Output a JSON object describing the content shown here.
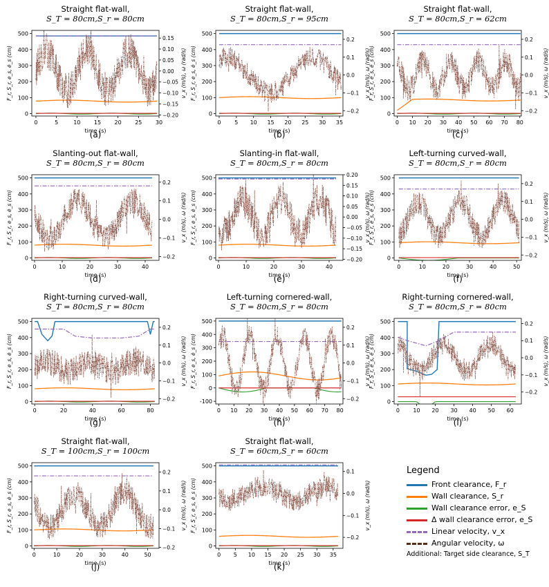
{
  "colors": {
    "front": "#1f77b4",
    "wall": "#ff7f0e",
    "wallerr": "#2ca02c",
    "dwallerr": "#d62728",
    "linvel": "#9467bd",
    "angvel": "#8c564b",
    "angvel_dark": "#5c2e15"
  },
  "common": {
    "xlabel": "time (s)",
    "ylabel_left": "F_r, S_r, e_s, ė_s (cm)",
    "ylabel_right": "v_x (m/s), ω (rad/s)"
  },
  "legend": {
    "title": "Legend",
    "items": [
      {
        "label": "Front clearance, F_r",
        "color": "#1f77b4",
        "style": "solid"
      },
      {
        "label": "Wall clearance, S_r",
        "color": "#ff7f0e",
        "style": "solid"
      },
      {
        "label": "Wall clearance error, e_S",
        "color": "#2ca02c",
        "style": "solid"
      },
      {
        "label": "Δ wall clearance error, e_S",
        "color": "#d62728",
        "style": "solid"
      },
      {
        "label": "Linear velocity, v_x",
        "color": "#9467bd",
        "style": "dashdot"
      },
      {
        "label": "Angular velocity, ω",
        "color": "#5c2e15",
        "style": "dashdot"
      }
    ],
    "additional": "Additional: Target side clearance, S_T"
  },
  "chart_data": [
    {
      "type": "line",
      "id": "a",
      "label": "(a)",
      "title": "Straight flat-wall,",
      "subtitle": "S_T = 80cm,S_r = 80cm",
      "xlim": [
        -1,
        30
      ],
      "xticks": [
        0,
        5,
        10,
        15,
        20,
        25,
        30
      ],
      "ylim": [
        -15,
        520
      ],
      "yticks": [
        0,
        100,
        200,
        300,
        400,
        500
      ],
      "y2lim": [
        -0.205,
        0.185
      ],
      "y2ticks": [
        "0.15",
        "0.10",
        "0.05",
        "0.00",
        "−0.05",
        "−0.10",
        "−0.15",
        "−0.20"
      ],
      "y2tickvals": [
        0.15,
        0.1,
        0.05,
        0,
        -0.05,
        -0.1,
        -0.15,
        -0.2
      ],
      "front": 485,
      "wall": 78,
      "linvel": 0.16,
      "ang_mean": 0.0,
      "ang_amp": 0.09,
      "ang_noise": 0.08,
      "ang_period": 10
    },
    {
      "type": "line",
      "id": "b",
      "label": "(b)",
      "title": "Straight flat-wall,",
      "subtitle": "S_T = 80cm,S_r = 95cm",
      "xlim": [
        -1,
        36
      ],
      "xticks": [
        0,
        5,
        10,
        15,
        20,
        25,
        30,
        35
      ],
      "ylim": [
        -15,
        520
      ],
      "yticks": [
        0,
        100,
        200,
        300,
        400,
        500
      ],
      "y2lim": [
        -0.23,
        0.25
      ],
      "y2ticks": [
        "0.2",
        "0.1",
        "0.0",
        "−0.1",
        "−0.2"
      ],
      "y2tickvals": [
        0.2,
        0.1,
        0,
        -0.1,
        -0.2
      ],
      "front": 500,
      "wall": 100,
      "linvel": 0.17,
      "ang_mean": 0.0,
      "ang_amp": 0.1,
      "ang_noise": 0.06,
      "ang_period": 25
    },
    {
      "type": "line",
      "id": "c",
      "label": "(c)",
      "title": "Straight flat-wall,",
      "subtitle": "S_T = 80cm,S_r = 62cm",
      "xlim": [
        -2,
        81
      ],
      "xticks": [
        0,
        10,
        20,
        30,
        40,
        50,
        60,
        70,
        80
      ],
      "ylim": [
        -15,
        520
      ],
      "yticks": [
        0,
        100,
        200,
        300,
        400,
        500
      ],
      "y2lim": [
        -0.23,
        0.25
      ],
      "y2ticks": [
        "0.2",
        "0.1",
        "0.0",
        "−0.1",
        "−0.2"
      ],
      "y2tickvals": [
        0.2,
        0.1,
        0,
        -0.1,
        -0.2
      ],
      "front": 500,
      "wall": 85,
      "linvel": 0.17,
      "ang_mean": 0.0,
      "ang_amp": 0.08,
      "ang_noise": 0.07,
      "ang_period": 18
    },
    {
      "type": "line",
      "id": "d",
      "label": "(d)",
      "title": "Slanting-out flat-wall,",
      "subtitle": "S_T = 80cm,S_r = 80cm",
      "xlim": [
        -1,
        45
      ],
      "xticks": [
        0,
        10,
        20,
        30,
        40
      ],
      "ylim": [
        -15,
        520
      ],
      "yticks": [
        0,
        100,
        200,
        300,
        400,
        500
      ],
      "y2lim": [
        -0.22,
        0.24
      ],
      "y2ticks": [
        "0.2",
        "0.1",
        "0.0",
        "−0.1",
        "−0.2"
      ],
      "y2tickvals": [
        0.2,
        0.1,
        0,
        -0.1,
        -0.2
      ],
      "front": 500,
      "wall": 80,
      "linvel": 0.18,
      "ang_mean": 0.0,
      "ang_amp": 0.1,
      "ang_noise": 0.07,
      "ang_period": 20
    },
    {
      "type": "line",
      "id": "e",
      "label": "(e)",
      "title": "Slanting-in flat-wall,",
      "subtitle": "S_T = 80cm,S_r = 80cm",
      "xlim": [
        -1,
        45
      ],
      "xticks": [
        0,
        10,
        20,
        30,
        40
      ],
      "ylim": [
        -15,
        520
      ],
      "yticks": [
        0,
        100,
        200,
        300,
        400,
        500
      ],
      "y2lim": [
        -0.205,
        0.2
      ],
      "y2ticks": [
        "0.20",
        "0.15",
        "0.10",
        "0.05",
        "0.00",
        "−0.05",
        "−0.10",
        "−0.15",
        "−0.20"
      ],
      "y2tickvals": [
        0.2,
        0.15,
        0.1,
        0.05,
        0,
        -0.05,
        -0.1,
        -0.15,
        -0.2
      ],
      "front": 500,
      "wall": 80,
      "linvel": 0.18,
      "ang_mean": 0.0,
      "ang_amp": 0.08,
      "ang_noise": 0.08,
      "ang_period": 14
    },
    {
      "type": "line",
      "id": "f",
      "label": "(f)",
      "title": "Left-turning curved-wall,",
      "subtitle": "S_T = 80cm,S_r = 80cm",
      "xlim": [
        -2,
        52
      ],
      "xticks": [
        0,
        10,
        20,
        30,
        40,
        50
      ],
      "ylim": [
        -15,
        520
      ],
      "yticks": [
        0,
        100,
        200,
        300,
        400,
        500
      ],
      "y2lim": [
        -0.23,
        0.25
      ],
      "y2ticks": [
        "0.2",
        "0.1",
        "0.0",
        "−0.1",
        "−0.2"
      ],
      "y2tickvals": [
        0.2,
        0.1,
        0,
        -0.1,
        -0.2
      ],
      "front": 500,
      "wall": 95,
      "linvel": 0.17,
      "ang_mean": 0.0,
      "ang_amp": 0.1,
      "ang_noise": 0.07,
      "ang_period": 18
    },
    {
      "type": "line",
      "id": "g",
      "label": "(g)",
      "title": "Right-turning curved-wall,",
      "subtitle": "S_T = 80cm,S_r = 80cm",
      "xlim": [
        -2,
        86
      ],
      "xticks": [
        0,
        20,
        40,
        60,
        80
      ],
      "ylim": [
        -15,
        520
      ],
      "yticks": [
        0,
        100,
        200,
        300,
        400,
        500
      ],
      "y2lim": [
        -0.23,
        0.25
      ],
      "y2ticks": [
        "0.2",
        "0.1",
        "0.0",
        "−0.1",
        "−0.2"
      ],
      "y2tickvals": [
        0.2,
        0.1,
        0,
        -0.1,
        -0.2
      ],
      "front": 500,
      "wall": 80,
      "linvel": 0.15,
      "ang_mean": -0.02,
      "ang_amp": 0.03,
      "ang_noise": 0.08,
      "ang_period": 30
    },
    {
      "type": "line",
      "id": "h",
      "label": "(h)",
      "title": "Left-turning cornered-wall,",
      "subtitle": "S_T = 80cm,S_r = 80cm",
      "xlim": [
        -2,
        82
      ],
      "xticks": [
        0,
        10,
        20,
        30,
        40,
        50,
        60,
        70,
        80
      ],
      "ylim": [
        -120,
        520
      ],
      "yticks": [
        -100,
        0,
        100,
        200,
        300,
        400,
        500
      ],
      "y2lim": [
        -0.23,
        0.25
      ],
      "y2ticks": [
        "0.2",
        "0.1",
        "0.0",
        "−0.1",
        "−0.2"
      ],
      "y2tickvals": [
        0.2,
        0.1,
        0,
        -0.1,
        -0.2
      ],
      "front": 500,
      "wall": 100,
      "linvel": 0.12,
      "ang_mean": 0.0,
      "ang_amp": 0.15,
      "ang_noise": 0.06,
      "ang_period": 18
    },
    {
      "type": "line",
      "id": "i",
      "label": "(i)",
      "title": "Right-turning cornered-wall,",
      "subtitle": "S_T = 80cm,S_r = 80cm",
      "xlim": [
        -2,
        66
      ],
      "xticks": [
        0,
        10,
        20,
        30,
        40,
        50,
        60
      ],
      "ylim": [
        -15,
        520
      ],
      "yticks": [
        0,
        100,
        200,
        300,
        400,
        500
      ],
      "y2lim": [
        -0.27,
        0.23
      ],
      "y2ticks": [
        "0.2",
        "0.1",
        "0.0",
        "−0.1",
        "−0.2"
      ],
      "y2tickvals": [
        0.2,
        0.1,
        0,
        -0.1,
        -0.2
      ],
      "front": 500,
      "wall": 110,
      "linvel": 0.15,
      "ang_mean": 0.0,
      "ang_amp": 0.08,
      "ang_noise": 0.06,
      "ang_period": 25
    },
    {
      "type": "line",
      "id": "j",
      "label": "(j)",
      "title": "Straight flat-wall,",
      "subtitle": "S_T = 100cm,S_r = 100cm",
      "xlim": [
        -1,
        55
      ],
      "xticks": [
        0,
        10,
        20,
        30,
        40,
        50
      ],
      "ylim": [
        -15,
        520
      ],
      "yticks": [
        0,
        100,
        200,
        300,
        400,
        500
      ],
      "y2lim": [
        -0.205,
        0.25
      ],
      "y2ticks": [
        "0.2",
        "0.1",
        "0.0",
        "−0.1",
        "−0.2"
      ],
      "y2tickvals": [
        0.2,
        0.1,
        0,
        -0.1,
        -0.2
      ],
      "front": 500,
      "wall": 100,
      "linvel": 0.18,
      "ang_mean": 0.0,
      "ang_amp": 0.09,
      "ang_noise": 0.07,
      "ang_period": 22
    },
    {
      "type": "line",
      "id": "k",
      "label": "(k)",
      "title": "Straight flat-wall,",
      "subtitle": "S_T = 60cm,S_r = 60cm",
      "xlim": [
        -1,
        38
      ],
      "xticks": [
        0,
        5,
        10,
        15,
        20,
        25,
        30,
        35
      ],
      "ylim": [
        -15,
        520
      ],
      "yticks": [
        0,
        100,
        200,
        300,
        400,
        500
      ],
      "y2lim": [
        -0.25,
        0.14
      ],
      "y2ticks": [
        "0.1",
        "0.0",
        "−0.1",
        "−0.2"
      ],
      "y2tickvals": [
        0.1,
        0,
        -0.1,
        -0.2
      ],
      "front": 500,
      "wall": 60,
      "linvel": 0.13,
      "ang_mean": 0.0,
      "ang_amp": 0.03,
      "ang_noise": 0.05,
      "ang_period": 20
    }
  ]
}
